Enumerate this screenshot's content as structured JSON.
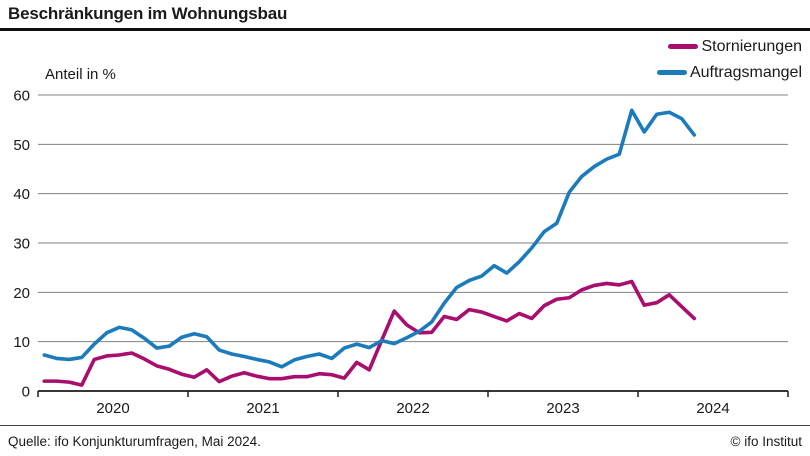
{
  "header": {
    "title": "Beschränkungen im Wohnungsbau"
  },
  "footer": {
    "source": "Quelle: ifo Konjunkturumfragen, Mai 2024.",
    "copyright": "© ifo Institut"
  },
  "colors": {
    "stornierungen": "#a90d6e",
    "auftragsmangel": "#1b7bbd",
    "gridline": "#808080",
    "axis": "#1a1a1a",
    "text": "#1a1a1a"
  },
  "chart_data": {
    "type": "line",
    "title": "Beschränkungen im Wohnungsbau",
    "ylabel": "Anteil in %",
    "ylim": [
      0,
      60
    ],
    "y_ticks": [
      0,
      10,
      20,
      30,
      40,
      50,
      60
    ],
    "x_start_month": "2020-01",
    "x_end_month": "2024-05",
    "x_tick_years": [
      "2020",
      "2021",
      "2022",
      "2023",
      "2024"
    ],
    "grid": "horizontal",
    "legend_position": "top-right",
    "series": [
      {
        "name": "Stornierungen",
        "color": "#a90d6e",
        "values": [
          2.0,
          2.0,
          1.8,
          1.2,
          6.4,
          7.1,
          7.3,
          7.7,
          6.5,
          5.1,
          4.4,
          3.4,
          2.8,
          4.3,
          1.9,
          3.0,
          3.7,
          3.0,
          2.5,
          2.5,
          2.9,
          2.9,
          3.5,
          3.3,
          2.6,
          5.8,
          4.3,
          10.3,
          16.2,
          13.4,
          11.8,
          11.9,
          15.1,
          14.5,
          16.5,
          16.0,
          15.1,
          14.2,
          15.7,
          14.7,
          17.3,
          18.6,
          18.9,
          20.5,
          21.4,
          21.8,
          21.5,
          22.2,
          17.4,
          17.9,
          19.5,
          17.1,
          14.7
        ]
      },
      {
        "name": "Auftragsmangel",
        "color": "#1b7bbd",
        "values": [
          7.3,
          6.6,
          6.4,
          6.8,
          9.5,
          11.8,
          12.9,
          12.4,
          10.7,
          8.7,
          9.1,
          10.9,
          11.6,
          11.0,
          8.3,
          7.5,
          7.0,
          6.4,
          5.9,
          4.9,
          6.3,
          7.0,
          7.5,
          6.6,
          8.7,
          9.5,
          8.8,
          10.2,
          9.6,
          10.8,
          12.1,
          14.0,
          17.8,
          21.0,
          22.4,
          23.3,
          25.4,
          23.9,
          26.2,
          29.0,
          32.3,
          34.0,
          40.3,
          43.5,
          45.5,
          47.0,
          48.0,
          56.9,
          52.5,
          56.1,
          56.5,
          55.2,
          51.9
        ]
      }
    ]
  },
  "layout_note": ""
}
